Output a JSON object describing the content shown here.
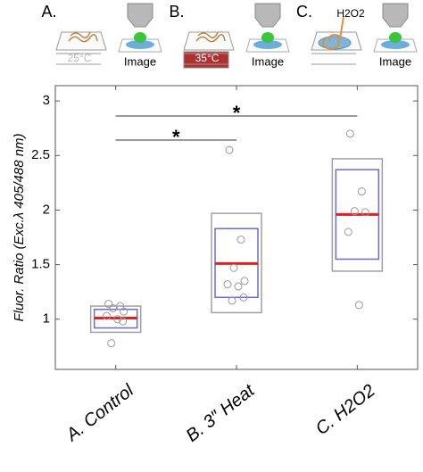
{
  "panels": [
    {
      "letter": "A.",
      "condition": "25°C",
      "image": "Image"
    },
    {
      "letter": "B.",
      "condition": "35°C",
      "image": "Image"
    },
    {
      "letter": "C.",
      "condition": "H2O2",
      "image": "Image"
    }
  ],
  "chart_data": {
    "type": "box",
    "y_label": "Fluor. Ratio (Exc.λ 405/488 nm)",
    "categories": [
      "A. Control",
      "B. 3″ Heat",
      "C. H2O2"
    ],
    "boxes": [
      {
        "outer": [
          0.88,
          1.12
        ],
        "inner": [
          0.92,
          1.09
        ],
        "median": 1.01
      },
      {
        "outer": [
          1.06,
          1.97
        ],
        "inner": [
          1.2,
          1.83
        ],
        "median": 1.51
      },
      {
        "outer": [
          1.44,
          2.47
        ],
        "inner": [
          1.55,
          2.37
        ],
        "median": 1.96
      }
    ],
    "points": [
      [
        1.14,
        1.12,
        1.1,
        1.07,
        1.03,
        1.0,
        0.98,
        0.78
      ],
      [
        2.55,
        1.73,
        1.47,
        1.35,
        1.32,
        1.3,
        1.2,
        1.17
      ],
      [
        2.7,
        2.17,
        1.99,
        1.98,
        1.8,
        1.13
      ]
    ],
    "comparisons": [
      {
        "groups": [
          "A. Control",
          "C. H2O2"
        ],
        "label": "*"
      },
      {
        "groups": [
          "A. Control",
          "B. 3″ Heat"
        ],
        "label": "*"
      }
    ],
    "ylim": [
      0.54,
      3.14
    ],
    "yticks": [
      1,
      1.5,
      2,
      2.5,
      3
    ],
    "outer_color": "#a0a0a0",
    "inner_color": "#6b6bd0",
    "median_color": "#e02020",
    "point_color": "#999999"
  }
}
